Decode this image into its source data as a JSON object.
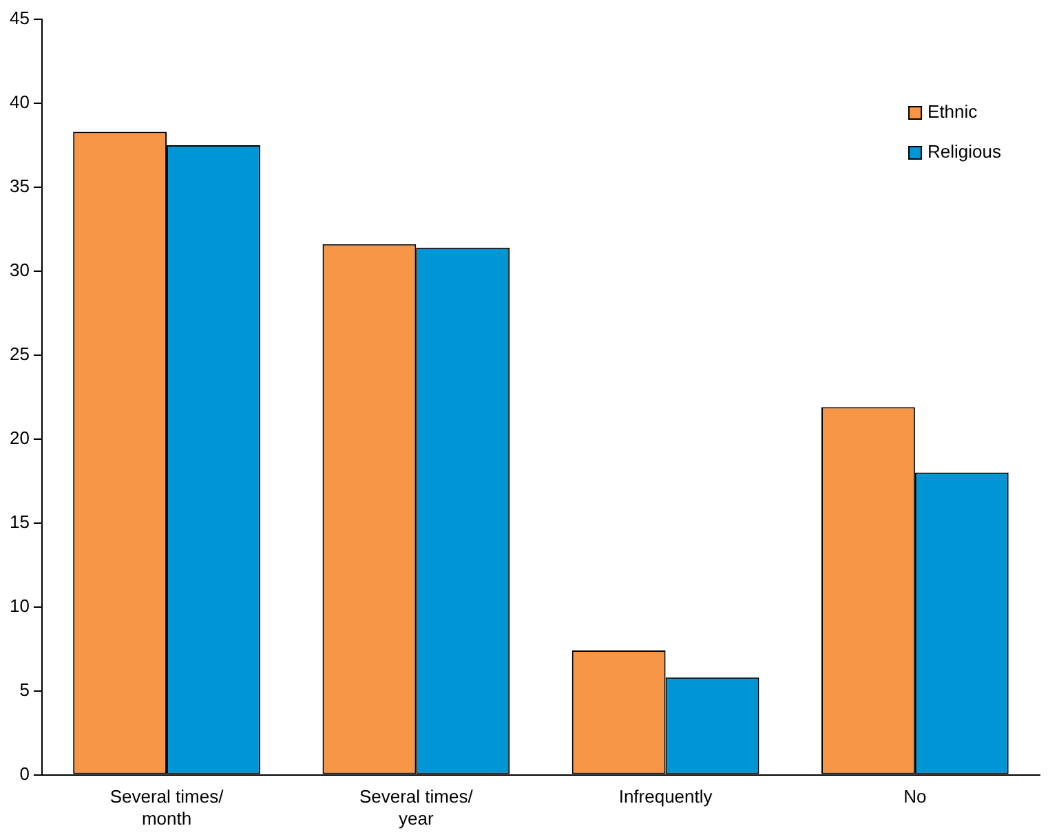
{
  "chart_data": {
    "type": "bar",
    "categories": [
      "Several times/ month",
      "Several times/ year",
      "Infrequently",
      "No"
    ],
    "series": [
      {
        "name": "Ethnic",
        "color": "#f79646",
        "values": [
          38.3,
          31.6,
          7.4,
          21.9
        ]
      },
      {
        "name": "Religious",
        "color": "#0096d6",
        "values": [
          37.5,
          31.4,
          5.8,
          18.0
        ]
      }
    ],
    "ylim": [
      0,
      45
    ],
    "yticks": [
      0,
      5,
      10,
      15,
      20,
      25,
      30,
      35,
      40,
      45
    ],
    "grid": false,
    "legend": "top right"
  }
}
